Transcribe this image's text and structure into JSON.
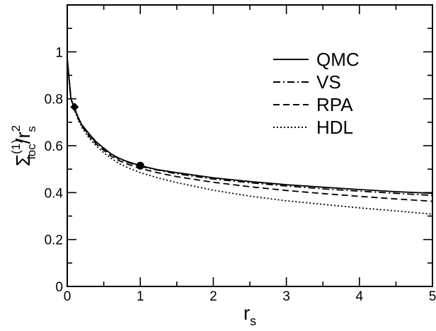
{
  "chart_data": {
    "type": "line",
    "title": "",
    "xlabel": {
      "base": "r",
      "sub": "s"
    },
    "ylabel": {
      "base": "Σ",
      "sup": "(1)",
      "sub": "loc",
      "denom_base": "r",
      "denom_sub": "s",
      "denom_sup": "2"
    },
    "xlim": [
      0,
      5
    ],
    "ylim": [
      0,
      1.2
    ],
    "x_ticks": [
      "0",
      "1",
      "2",
      "3",
      "4",
      "5"
    ],
    "y_ticks": [
      "0",
      "0.2",
      "0.4",
      "0.6",
      "0.8",
      "1"
    ],
    "grid": false,
    "legend_position": "top-right",
    "series": [
      {
        "name": "QMC",
        "style": "solid",
        "x": [
          0.0,
          0.05,
          0.1,
          0.15,
          0.2,
          0.3,
          0.4,
          0.5,
          0.6,
          0.7,
          0.8,
          1.0,
          1.25,
          1.5,
          2.0,
          2.5,
          3.0,
          3.5,
          4.0,
          4.5,
          5.0
        ],
        "y": [
          0.97,
          0.8,
          0.76,
          0.72,
          0.69,
          0.65,
          0.615,
          0.59,
          0.565,
          0.548,
          0.535,
          0.515,
          0.497,
          0.485,
          0.463,
          0.447,
          0.434,
          0.423,
          0.413,
          0.404,
          0.397
        ]
      },
      {
        "name": "VS",
        "style": "dashdot",
        "x": [
          0.0,
          0.05,
          0.1,
          0.15,
          0.2,
          0.3,
          0.4,
          0.5,
          0.6,
          0.7,
          0.8,
          1.0,
          1.25,
          1.5,
          2.0,
          2.5,
          3.0,
          3.5,
          4.0,
          4.5,
          5.0
        ],
        "y": [
          0.97,
          0.8,
          0.76,
          0.72,
          0.688,
          0.645,
          0.612,
          0.588,
          0.563,
          0.545,
          0.532,
          0.512,
          0.495,
          0.48,
          0.458,
          0.442,
          0.428,
          0.416,
          0.406,
          0.397,
          0.388
        ]
      },
      {
        "name": "RPA",
        "style": "dashed",
        "x": [
          0.0,
          0.05,
          0.1,
          0.15,
          0.2,
          0.3,
          0.4,
          0.5,
          0.6,
          0.7,
          0.8,
          1.0,
          1.25,
          1.5,
          2.0,
          2.5,
          3.0,
          3.5,
          4.0,
          4.5,
          5.0
        ],
        "y": [
          0.97,
          0.8,
          0.758,
          0.715,
          0.684,
          0.64,
          0.606,
          0.58,
          0.556,
          0.538,
          0.524,
          0.503,
          0.484,
          0.468,
          0.444,
          0.425,
          0.409,
          0.396,
          0.384,
          0.373,
          0.363
        ]
      },
      {
        "name": "HDL",
        "style": "dotted",
        "x": [
          0.0,
          0.05,
          0.1,
          0.15,
          0.2,
          0.3,
          0.4,
          0.5,
          0.6,
          0.7,
          0.8,
          1.0,
          1.25,
          1.5,
          2.0,
          2.5,
          3.0,
          3.5,
          4.0,
          4.5,
          5.0
        ],
        "y": [
          0.97,
          0.8,
          0.752,
          0.71,
          0.678,
          0.632,
          0.598,
          0.57,
          0.546,
          0.526,
          0.51,
          0.485,
          0.462,
          0.443,
          0.41,
          0.385,
          0.365,
          0.35,
          0.335,
          0.322,
          0.308
        ]
      }
    ],
    "markers": [
      {
        "shape": "diamond",
        "x": 0.1,
        "y": 0.765
      },
      {
        "shape": "circle",
        "x": 1.0,
        "y": 0.515
      }
    ]
  }
}
